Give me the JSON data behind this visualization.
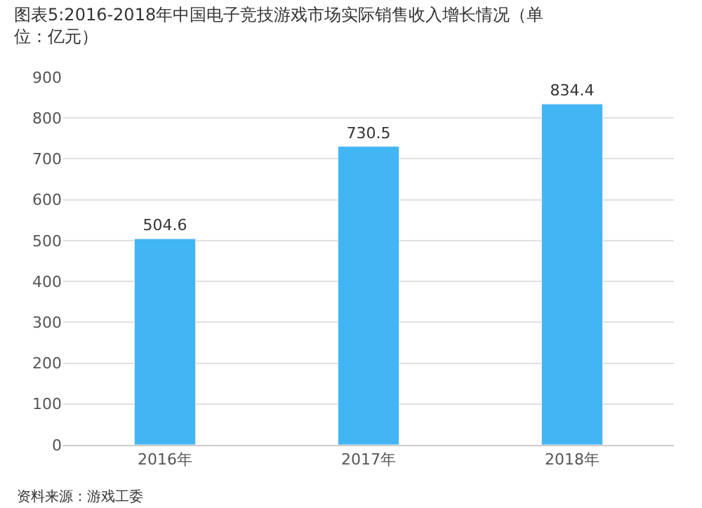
{
  "chart_data": {
    "type": "bar",
    "title": "图表5:2016-2018年中国电子竞技游戏市场实际销售收入增长情况（单位：亿元）",
    "categories": [
      "2016年",
      "2017年",
      "2018年"
    ],
    "values": [
      504.6,
      730.5,
      834.4
    ],
    "color": "#42b5f5",
    "ylim": [
      0,
      900
    ],
    "yticks": [
      0,
      100,
      200,
      300,
      400,
      500,
      600,
      700,
      800,
      900
    ],
    "grid": "y",
    "data_labels": true,
    "annotations": [
      "资料来源：游戏工委"
    ]
  }
}
